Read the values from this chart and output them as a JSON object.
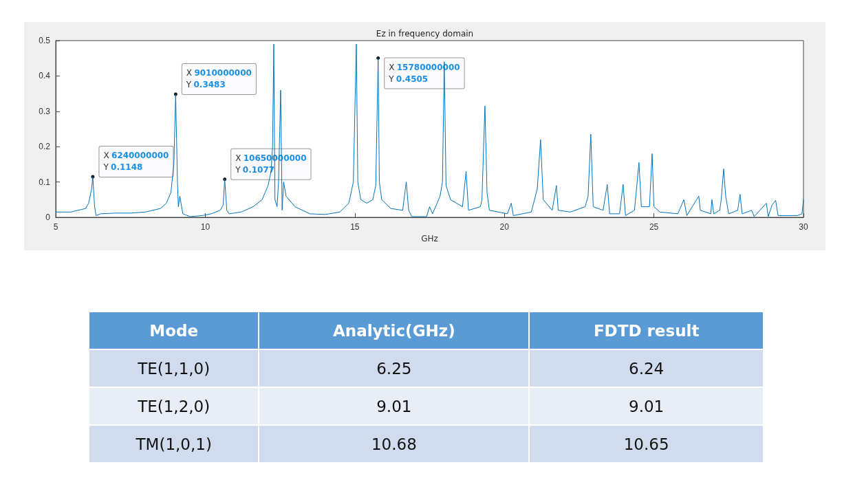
{
  "chart_data": [
    {
      "type": "line",
      "title": "Ez in frequency domain",
      "xlabel": "GHz",
      "xlim": [
        5,
        30
      ],
      "xticks": [
        5,
        10,
        15,
        20,
        25,
        30
      ],
      "ylim": [
        0,
        0.5
      ],
      "yticks": [
        0,
        0.1,
        0.2,
        0.3,
        0.4,
        0.5
      ],
      "grid": false,
      "marker": "none",
      "line_style": "solid",
      "series": [
        {
          "color": "#0072bd",
          "x": [
            5,
            5.5,
            6.0,
            6.1,
            6.2,
            6.24,
            6.3,
            6.35,
            6.5,
            7,
            7.5,
            8,
            8.5,
            8.7,
            8.85,
            8.95,
            9.01,
            9.07,
            9.1,
            9.15,
            9.25,
            9.5,
            9.9,
            10.2,
            10.5,
            10.6,
            10.65,
            10.72,
            10.8,
            11.2,
            11.6,
            11.9,
            12.1,
            12.2,
            12.25,
            12.29,
            12.33,
            12.4,
            12.45,
            12.52,
            12.57,
            12.62,
            12.7,
            13.0,
            13.5,
            14,
            14.5,
            14.8,
            14.95,
            15.05,
            15.1,
            15.2,
            15.4,
            15.6,
            15.7,
            15.78,
            15.82,
            15.9,
            16.2,
            16.6,
            16.72,
            16.8,
            16.9,
            17.4,
            17.5,
            17.6,
            17.85,
            17.93,
            17.99,
            18.05,
            18.2,
            18.6,
            18.72,
            18.8,
            19.2,
            19.25,
            19.35,
            19.42,
            19.5,
            20.1,
            20.23,
            20.3,
            20.9,
            21.1,
            21.21,
            21.3,
            21.6,
            21.74,
            21.8,
            22.2,
            22.7,
            22.8,
            22.89,
            22.97,
            23.3,
            23.44,
            23.52,
            23.85,
            23.97,
            24.05,
            24.35,
            24.5,
            24.58,
            24.85,
            24.94,
            25.0,
            25.2,
            25.8,
            25.9,
            26.0,
            26.1,
            26.5,
            26.55,
            26.9,
            26.94,
            27.0,
            27.2,
            27.25,
            27.33,
            27.4,
            27.5,
            27.8,
            27.88,
            27.95,
            28.27,
            28.35,
            28.76,
            28.82,
            28.95,
            29.07,
            29.15,
            29.8,
            29.95,
            30
          ],
          "values": [
            0.015,
            0.015,
            0.025,
            0.04,
            0.08,
            0.115,
            0.03,
            0.005,
            0.01,
            0.012,
            0.012,
            0.015,
            0.025,
            0.04,
            0.07,
            0.15,
            0.348,
            0.1,
            0.03,
            0.06,
            0.01,
            0.002,
            0.005,
            0.01,
            0.02,
            0.035,
            0.108,
            0.02,
            0.01,
            0.015,
            0.03,
            0.05,
            0.09,
            0.13,
            0.2,
            0.49,
            0.05,
            0.03,
            0.1,
            0.36,
            0.02,
            0.1,
            0.06,
            0.03,
            0.01,
            0.008,
            0.015,
            0.04,
            0.1,
            0.49,
            0.1,
            0.05,
            0.04,
            0.05,
            0.09,
            0.45,
            0.1,
            0.05,
            0.025,
            0.02,
            0.1,
            0.02,
            0.002,
            0.002,
            0.03,
            0.01,
            0.06,
            0.1,
            0.44,
            0.09,
            0.05,
            0.03,
            0.13,
            0.02,
            0.03,
            0.05,
            0.315,
            0.07,
            0.02,
            0.01,
            0.04,
            0.005,
            0.015,
            0.08,
            0.22,
            0.05,
            0.02,
            0.09,
            0.02,
            0.015,
            0.03,
            0.06,
            0.235,
            0.03,
            0.02,
            0.093,
            0.01,
            0.01,
            0.093,
            0.005,
            0.02,
            0.155,
            0.03,
            0.03,
            0.18,
            0.03,
            0.015,
            0.01,
            0.03,
            0.05,
            0.005,
            0.06,
            0.02,
            0.01,
            0.05,
            0.01,
            0.02,
            0.05,
            0.137,
            0.06,
            0.01,
            0.02,
            0.065,
            0.01,
            0.02,
            0.002,
            0.04,
            0.002,
            0.035,
            0.048,
            0.005,
            0.005,
            0.01,
            0.05
          ]
        }
      ],
      "annotations": [
        {
          "text": "X 6240000000\nY 0.1148",
          "x": 6.24,
          "y": 0.1148
        },
        {
          "text": "X 9010000000\nY 0.3483",
          "x": 9.01,
          "y": 0.3483
        },
        {
          "text": "X 10650000000\nY 0.1077",
          "x": 10.65,
          "y": 0.1077
        },
        {
          "text": "X 15780000000\nY 0.4505",
          "x": 15.78,
          "y": 0.4505
        }
      ]
    },
    {
      "type": "other",
      "categories": [
        "Mode",
        "Analytic(GHz)",
        "FDTD result"
      ],
      "y_categories": [
        "TE(1,1,0)",
        "TE(1,2,0)",
        "TM(1,0,1)"
      ],
      "cell_labels": [
        [
          "6.25",
          "6.24"
        ],
        [
          "9.01",
          "9.01"
        ],
        [
          "10.68",
          "10.65"
        ]
      ]
    }
  ]
}
